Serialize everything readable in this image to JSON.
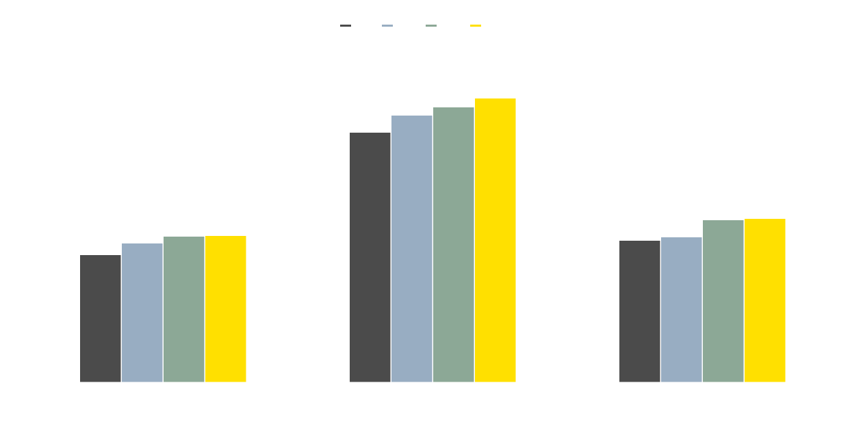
{
  "chart_data": {
    "type": "bar",
    "categories": [
      "",
      "",
      ""
    ],
    "series": [
      {
        "color": "#4b4b4b",
        "values": [
          187,
          366,
          208
        ]
      },
      {
        "color": "#98adc2",
        "values": [
          204,
          391,
          213
        ]
      },
      {
        "color": "#8ca896",
        "values": [
          214,
          403,
          238
        ]
      },
      {
        "color": "#ffe000",
        "values": [
          215,
          416,
          240
        ]
      }
    ],
    "legend_position": "top-center",
    "grid": false,
    "ylim": [
      0,
      430
    ]
  }
}
